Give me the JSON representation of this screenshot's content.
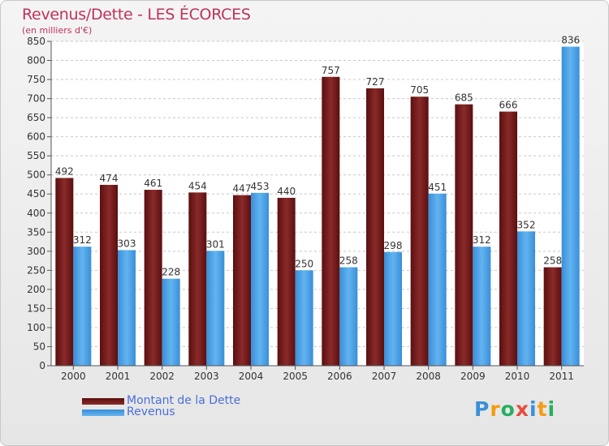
{
  "chart_data": {
    "type": "bar",
    "title": "Revenus/Dette - LES ÉCORCES",
    "subtitle": "(en milliers d'€)",
    "categories": [
      "2000",
      "2001",
      "2002",
      "2003",
      "2004",
      "2005",
      "2006",
      "2007",
      "2008",
      "2009",
      "2010",
      "2011"
    ],
    "series": [
      {
        "name": "Montant de la Dette",
        "color": "#7a1a1a",
        "values": [
          492,
          474,
          461,
          454,
          447,
          440,
          757,
          727,
          705,
          685,
          666,
          258
        ]
      },
      {
        "name": "Revenus",
        "color": "#4aa3e8",
        "values": [
          312,
          303,
          228,
          301,
          453,
          250,
          258,
          298,
          451,
          312,
          352,
          836
        ]
      }
    ],
    "ylim": [
      0,
      850
    ],
    "ytick_step": 50,
    "grid": true,
    "legend_position": "bottom-left"
  },
  "logo": {
    "letters": [
      "P",
      "r",
      "o",
      "x",
      "i",
      "t",
      "i"
    ],
    "colors": [
      "#3a8fd9",
      "#f39c12",
      "#27ae60",
      "#e74c3c",
      "#3a8fd9",
      "#f39c12",
      "#27ae60"
    ]
  }
}
